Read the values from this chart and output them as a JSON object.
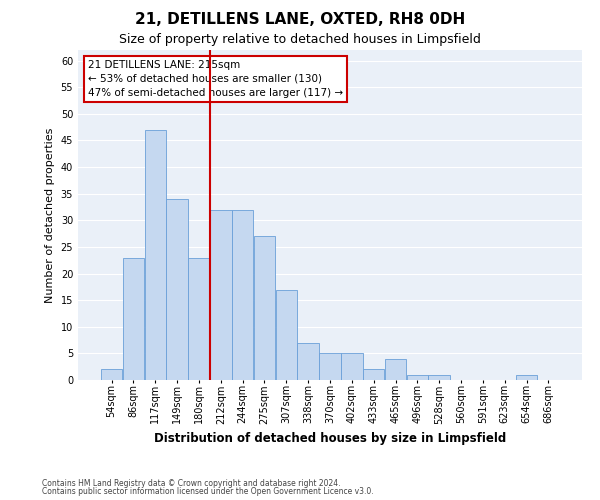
{
  "title1": "21, DETILLENS LANE, OXTED, RH8 0DH",
  "title2": "Size of property relative to detached houses in Limpsfield",
  "xlabel": "Distribution of detached houses by size in Limpsfield",
  "ylabel": "Number of detached properties",
  "categories": [
    "54sqm",
    "86sqm",
    "117sqm",
    "149sqm",
    "180sqm",
    "212sqm",
    "244sqm",
    "275sqm",
    "307sqm",
    "338sqm",
    "370sqm",
    "402sqm",
    "433sqm",
    "465sqm",
    "496sqm",
    "528sqm",
    "560sqm",
    "591sqm",
    "623sqm",
    "654sqm",
    "686sqm"
  ],
  "values": [
    2,
    23,
    47,
    34,
    23,
    32,
    32,
    27,
    17,
    7,
    5,
    5,
    2,
    4,
    1,
    1,
    0,
    0,
    0,
    1,
    0
  ],
  "bar_color": "#c5d8f0",
  "bar_edge_color": "#6a9fd8",
  "ylim": [
    0,
    62
  ],
  "yticks": [
    0,
    5,
    10,
    15,
    20,
    25,
    30,
    35,
    40,
    45,
    50,
    55,
    60
  ],
  "vline_index": 5,
  "vline_color": "#cc0000",
  "annotation_text": "21 DETILLENS LANE: 215sqm\n← 53% of detached houses are smaller (130)\n47% of semi-detached houses are larger (117) →",
  "annotation_box_color": "#ffffff",
  "annotation_box_edge": "#cc0000",
  "footer1": "Contains HM Land Registry data © Crown copyright and database right 2024.",
  "footer2": "Contains public sector information licensed under the Open Government Licence v3.0.",
  "bg_color": "#eaf0f8",
  "grid_color": "#ffffff",
  "title1_fontsize": 11,
  "title2_fontsize": 9,
  "ylabel_fontsize": 8,
  "xlabel_fontsize": 8.5,
  "tick_fontsize": 7,
  "annot_fontsize": 7.5,
  "footer_fontsize": 5.5
}
